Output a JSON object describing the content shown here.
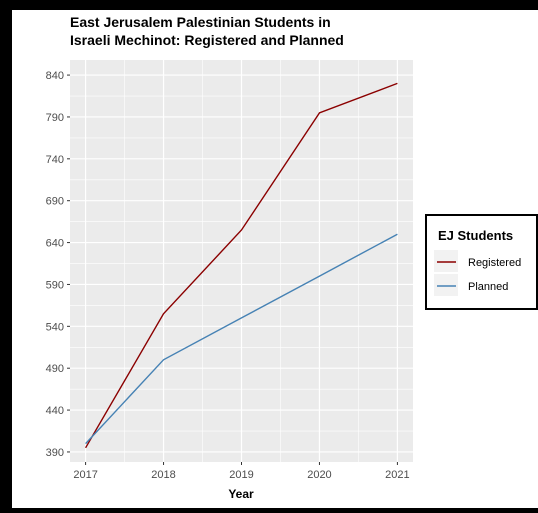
{
  "chart_data": {
    "type": "line",
    "title_line1": "East Jerusalem Palestinian Students in",
    "title_line2": "Israeli Mechinot: Registered and Planned",
    "xlabel": "Year",
    "ylabel": "",
    "x": [
      2017,
      2018,
      2019,
      2020,
      2021
    ],
    "x_ticks": [
      "2017",
      "2018",
      "2019",
      "2020",
      "2021"
    ],
    "y_ticks": [
      "390",
      "440",
      "490",
      "540",
      "590",
      "640",
      "690",
      "740",
      "790",
      "840"
    ],
    "ylim": [
      378,
      858
    ],
    "xlim": [
      2016.8,
      2021.2
    ],
    "grid": true,
    "legend": {
      "title": "EJ Students",
      "placement": "right"
    },
    "series": [
      {
        "name": "Registered",
        "color": "#8b0000",
        "values": [
          395,
          555,
          655,
          795,
          830
        ]
      },
      {
        "name": "Planned",
        "color": "#4682b4",
        "values": [
          400,
          500,
          550,
          600,
          650
        ]
      }
    ]
  }
}
